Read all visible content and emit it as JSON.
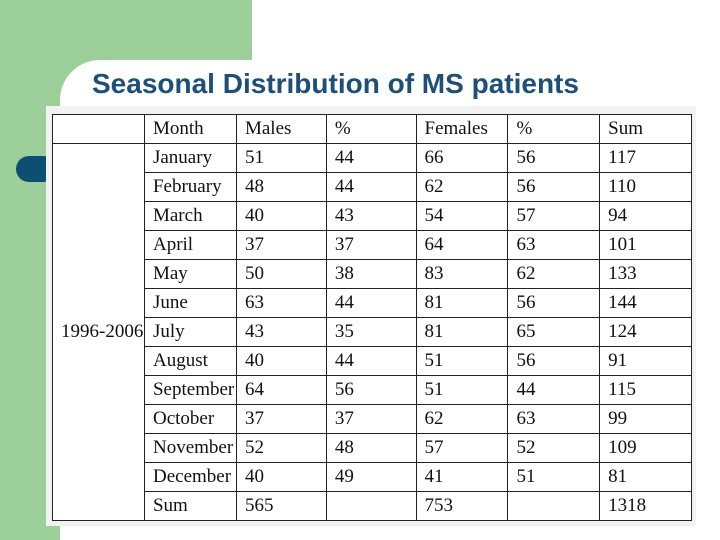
{
  "slide": {
    "title": "Seasonal Distribution of MS patients"
  },
  "table": {
    "period_label": "1996-2006",
    "headers": [
      "Month",
      "Males",
      "%",
      "Females",
      "%",
      "Sum"
    ],
    "rows": [
      [
        "January",
        "51",
        "44",
        "66",
        "56",
        "117"
      ],
      [
        "February",
        "48",
        "44",
        "62",
        "56",
        "110"
      ],
      [
        "March",
        "40",
        "43",
        "54",
        "57",
        "94"
      ],
      [
        "April",
        "37",
        "37",
        "64",
        "63",
        "101"
      ],
      [
        "May",
        "50",
        "38",
        "83",
        "62",
        "133"
      ],
      [
        "June",
        "63",
        "44",
        "81",
        "56",
        "144"
      ],
      [
        "July",
        "43",
        "35",
        "81",
        "65",
        "124"
      ],
      [
        "August",
        "40",
        "44",
        "51",
        "56",
        "91"
      ],
      [
        "September",
        "64",
        "56",
        "51",
        "44",
        "115"
      ],
      [
        "October",
        "37",
        "37",
        "62",
        "63",
        "99"
      ],
      [
        "November",
        "52",
        "48",
        "57",
        "52",
        "109"
      ],
      [
        "December",
        "40",
        "49",
        "41",
        "51",
        "81"
      ],
      [
        "Sum",
        "565",
        "",
        "753",
        "",
        "1318"
      ]
    ]
  },
  "colors": {
    "accent_green": "#9ccf9a",
    "title_blue": "#1e4f78",
    "bullet_blue": "#0e4e70"
  }
}
